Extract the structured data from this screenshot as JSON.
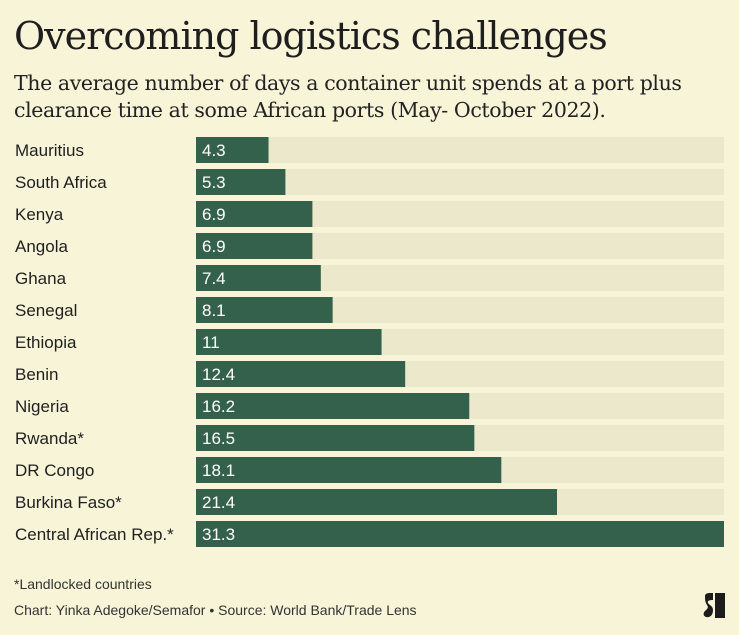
{
  "header": {
    "title": "Overcoming logistics challenges",
    "subtitle": "The average number of days a container unit spends at a port plus clearance time at some African ports (May- October 2022)."
  },
  "footer": {
    "footnote": "*Landlocked countries",
    "credit": "Chart: Yinka Adegoke/Semafor • Source: World Bank/Trade Lens",
    "logo_icon": "semafor-logo-icon"
  },
  "colors": {
    "background": "#f8f4d8",
    "track": "#ebe8cc",
    "bar": "#33614b",
    "bar_label": "#ffffff"
  },
  "chart_data": {
    "type": "bar",
    "orientation": "horizontal",
    "title": "Overcoming logistics challenges",
    "subtitle": "The average number of days a container unit spends at a port plus clearance time at some African ports (May- October 2022).",
    "xlabel": "",
    "ylabel": "",
    "xlim": [
      0,
      31.3
    ],
    "grid": false,
    "categories": [
      "Mauritius",
      "South Africa",
      "Kenya",
      "Angola",
      "Ghana",
      "Senegal",
      "Ethiopia",
      "Benin",
      "Nigeria",
      "Rwanda*",
      "DR Congo",
      "Burkina Faso*",
      "Central African Rep.*"
    ],
    "values": [
      4.3,
      5.3,
      6.9,
      6.9,
      7.4,
      8.1,
      11,
      12.4,
      16.2,
      16.5,
      18.1,
      21.4,
      31.3
    ],
    "labels": [
      "4.3",
      "5.3",
      "6.9",
      "6.9",
      "7.4",
      "8.1",
      "11",
      "12.4",
      "16.2",
      "16.5",
      "18.1",
      "21.4",
      "31.3"
    ]
  }
}
